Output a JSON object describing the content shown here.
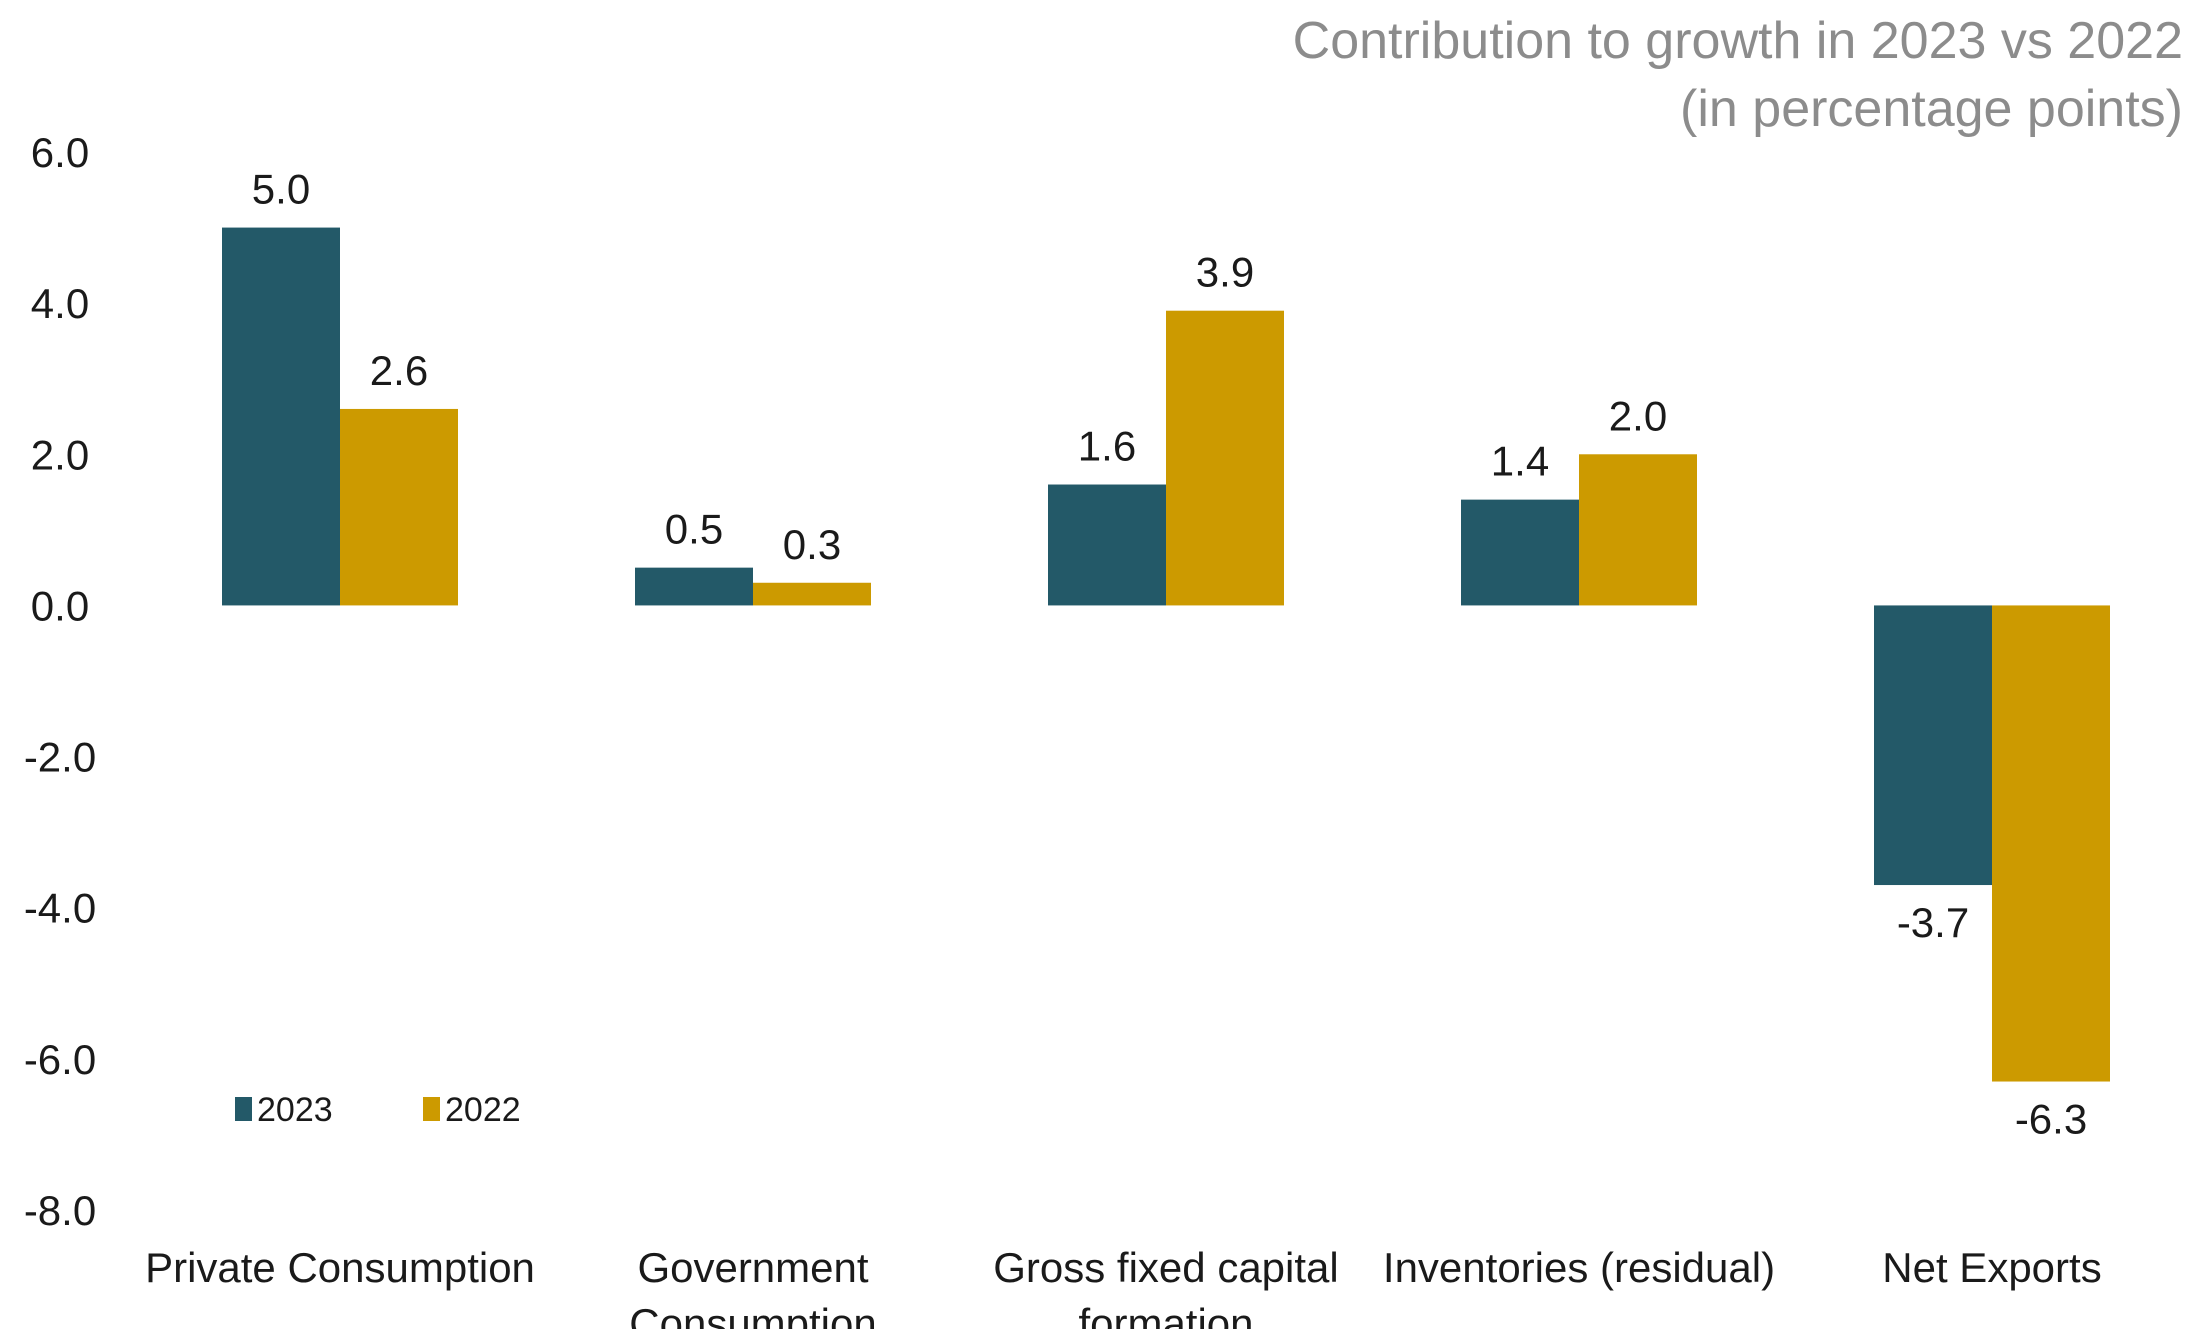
{
  "chart_data": {
    "type": "bar",
    "title_lines": [
      "Contribution to growth in 2023 vs 2022",
      "(in percentage points)"
    ],
    "categories": [
      [
        "Private Consumption"
      ],
      [
        "Government",
        "Consumption"
      ],
      [
        "Gross fixed capital",
        "formation"
      ],
      [
        "Inventories (residual)"
      ],
      [
        "Net Exports"
      ]
    ],
    "series": [
      {
        "name": "2023",
        "color": "#235968",
        "values": [
          5.0,
          0.5,
          1.6,
          1.4,
          -3.7
        ],
        "labels": [
          "5.0",
          "0.5",
          "1.6",
          "1.4",
          "-3.7"
        ]
      },
      {
        "name": "2022",
        "color": "#cc9a00",
        "values": [
          2.6,
          0.3,
          3.9,
          2.0,
          -6.3
        ],
        "labels": [
          "2.6",
          "0.3",
          "3.9",
          "2.0",
          "-6.3"
        ]
      }
    ],
    "ylim": [
      -8,
      6
    ],
    "yticks": [
      6,
      4,
      2,
      0,
      -2,
      -4,
      -6,
      -8
    ],
    "ytick_labels": [
      "6.0",
      "4.0",
      "2.0",
      "0.0",
      "-2.0",
      "-4.0",
      "-6.0",
      "-8.0"
    ],
    "grid": false,
    "legend_position": "bottom-left"
  }
}
